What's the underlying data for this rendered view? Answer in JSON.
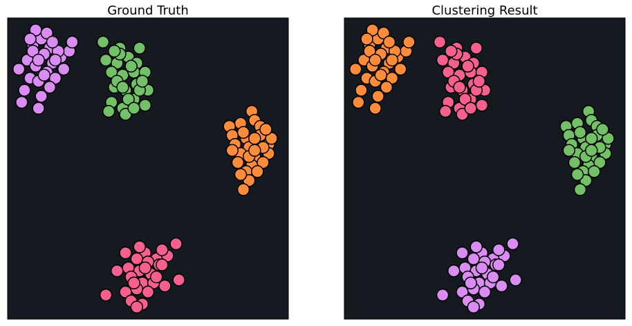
{
  "figure": {
    "background": "#ffffff",
    "panel_background": "#151a20",
    "marker_edge_color": "#000000"
  },
  "chart_data": [
    {
      "type": "scatter",
      "title": "Ground Truth",
      "grid": false,
      "axes_visible": false,
      "xlim": [
        0,
        10
      ],
      "ylim": [
        0,
        10
      ],
      "series": [
        {
          "color": "#d98cf2",
          "points": [
            [
              0.9,
              9.1
            ],
            [
              1.2,
              9.3
            ],
            [
              1.5,
              9.0
            ],
            [
              0.7,
              8.6
            ],
            [
              1.0,
              8.4
            ],
            [
              1.3,
              8.8
            ],
            [
              1.6,
              8.5
            ],
            [
              1.9,
              8.7
            ],
            [
              0.4,
              8.3
            ],
            [
              0.8,
              8.0
            ],
            [
              1.1,
              7.9
            ],
            [
              1.4,
              8.2
            ],
            [
              1.7,
              8.0
            ],
            [
              2.0,
              8.3
            ],
            [
              2.2,
              8.9
            ],
            [
              0.6,
              7.6
            ],
            [
              1.2,
              7.4
            ],
            [
              1.5,
              7.7
            ],
            [
              0.5,
              7.2
            ],
            [
              1.1,
              7.0
            ],
            [
              1.8,
              8.9
            ],
            [
              1.0,
              9.6
            ],
            [
              1.4,
              9.5
            ],
            [
              0.8,
              9.3
            ],
            [
              1.3,
              8.1
            ],
            [
              1.6,
              9.2
            ],
            [
              0.9,
              8.9
            ],
            [
              1.1,
              8.6
            ],
            [
              1.7,
              8.6
            ],
            [
              2.3,
              9.2
            ]
          ]
        },
        {
          "color": "#74c069",
          "points": [
            [
              3.4,
              9.2
            ],
            [
              4.0,
              9.0
            ],
            [
              4.7,
              9.0
            ],
            [
              3.5,
              8.6
            ],
            [
              3.9,
              8.5
            ],
            [
              4.3,
              8.7
            ],
            [
              4.6,
              8.5
            ],
            [
              3.7,
              8.2
            ],
            [
              4.1,
              8.1
            ],
            [
              4.5,
              8.2
            ],
            [
              4.9,
              8.2
            ],
            [
              3.8,
              7.7
            ],
            [
              4.2,
              7.6
            ],
            [
              4.6,
              7.8
            ],
            [
              5.0,
              7.6
            ],
            [
              3.7,
              7.2
            ],
            [
              4.1,
              7.0
            ],
            [
              4.5,
              7.3
            ],
            [
              4.9,
              7.1
            ],
            [
              3.6,
              6.9
            ],
            [
              4.2,
              6.8
            ],
            [
              4.7,
              7.6
            ],
            [
              4.0,
              8.8
            ],
            [
              4.4,
              8.4
            ],
            [
              3.9,
              7.9
            ],
            [
              4.8,
              7.9
            ],
            [
              4.3,
              7.3
            ],
            [
              3.8,
              8.9
            ],
            [
              4.5,
              7.0
            ],
            [
              4.1,
              7.7
            ]
          ]
        },
        {
          "color": "#ff8c3a",
          "points": [
            [
              8.7,
              6.9
            ],
            [
              7.9,
              6.4
            ],
            [
              8.3,
              6.5
            ],
            [
              8.8,
              6.6
            ],
            [
              9.0,
              6.4
            ],
            [
              8.0,
              6.1
            ],
            [
              8.5,
              6.0
            ],
            [
              9.0,
              6.1
            ],
            [
              8.1,
              5.8
            ],
            [
              8.6,
              5.7
            ],
            [
              9.3,
              5.8
            ],
            [
              8.3,
              5.5
            ],
            [
              8.8,
              5.4
            ],
            [
              9.3,
              5.5
            ],
            [
              8.2,
              5.2
            ],
            [
              8.7,
              5.1
            ],
            [
              9.1,
              5.2
            ],
            [
              8.5,
              4.9
            ],
            [
              8.9,
              4.9
            ],
            [
              8.6,
              4.6
            ],
            [
              8.4,
              4.3
            ],
            [
              9.4,
              6.0
            ],
            [
              8.4,
              6.2
            ],
            [
              8.8,
              6.0
            ],
            [
              8.6,
              5.4
            ],
            [
              9.1,
              5.7
            ],
            [
              8.0,
              5.6
            ],
            [
              8.8,
              5.6
            ],
            [
              8.3,
              4.8
            ],
            [
              9.2,
              6.3
            ]
          ]
        },
        {
          "color": "#f5608e",
          "points": [
            [
              6.0,
              2.5
            ],
            [
              4.9,
              2.2
            ],
            [
              5.3,
              2.0
            ],
            [
              5.7,
              2.1
            ],
            [
              4.2,
              2.2
            ],
            [
              4.6,
              2.0
            ],
            [
              5.0,
              1.9
            ],
            [
              5.4,
              1.8
            ],
            [
              3.9,
              1.6
            ],
            [
              4.3,
              1.7
            ],
            [
              4.7,
              1.6
            ],
            [
              5.1,
              1.5
            ],
            [
              5.5,
              1.8
            ],
            [
              4.4,
              1.4
            ],
            [
              4.8,
              1.2
            ],
            [
              5.2,
              1.2
            ],
            [
              5.6,
              1.1
            ],
            [
              6.1,
              1.3
            ],
            [
              3.5,
              0.8
            ],
            [
              4.2,
              0.9
            ],
            [
              4.6,
              1.0
            ],
            [
              5.0,
              0.9
            ],
            [
              4.4,
              0.6
            ],
            [
              4.8,
              0.5
            ],
            [
              4.6,
              0.4
            ],
            [
              5.5,
              2.3
            ],
            [
              4.7,
              2.4
            ],
            [
              4.9,
              1.7
            ],
            [
              5.3,
              1.4
            ],
            [
              4.5,
              1.2
            ]
          ]
        }
      ]
    },
    {
      "type": "scatter",
      "title": "Clustering Result",
      "grid": false,
      "axes_visible": false,
      "xlim": [
        0,
        10
      ],
      "ylim": [
        0,
        10
      ],
      "series": [
        {
          "color": "#ff8c3a",
          "points": [
            [
              0.9,
              9.1
            ],
            [
              1.2,
              9.3
            ],
            [
              1.5,
              9.0
            ],
            [
              0.7,
              8.6
            ],
            [
              1.0,
              8.4
            ],
            [
              1.3,
              8.8
            ],
            [
              1.6,
              8.5
            ],
            [
              1.9,
              8.7
            ],
            [
              0.4,
              8.3
            ],
            [
              0.8,
              8.0
            ],
            [
              1.1,
              7.9
            ],
            [
              1.4,
              8.2
            ],
            [
              1.7,
              8.0
            ],
            [
              2.0,
              8.3
            ],
            [
              2.2,
              8.9
            ],
            [
              0.6,
              7.6
            ],
            [
              1.2,
              7.4
            ],
            [
              1.5,
              7.7
            ],
            [
              0.5,
              7.2
            ],
            [
              1.1,
              7.0
            ],
            [
              1.8,
              8.9
            ],
            [
              1.0,
              9.6
            ],
            [
              1.4,
              9.5
            ],
            [
              0.8,
              9.3
            ],
            [
              1.3,
              8.1
            ],
            [
              1.6,
              9.2
            ],
            [
              0.9,
              8.9
            ],
            [
              1.1,
              8.6
            ],
            [
              1.7,
              8.6
            ],
            [
              2.3,
              9.2
            ]
          ]
        },
        {
          "color": "#f5608e",
          "points": [
            [
              3.4,
              9.2
            ],
            [
              4.0,
              9.0
            ],
            [
              4.7,
              9.0
            ],
            [
              3.5,
              8.6
            ],
            [
              3.9,
              8.5
            ],
            [
              4.3,
              8.7
            ],
            [
              4.6,
              8.5
            ],
            [
              3.7,
              8.2
            ],
            [
              4.1,
              8.1
            ],
            [
              4.5,
              8.2
            ],
            [
              4.9,
              8.2
            ],
            [
              3.8,
              7.7
            ],
            [
              4.2,
              7.6
            ],
            [
              4.6,
              7.8
            ],
            [
              5.0,
              7.6
            ],
            [
              3.7,
              7.2
            ],
            [
              4.1,
              7.0
            ],
            [
              4.5,
              7.3
            ],
            [
              4.9,
              7.1
            ],
            [
              3.6,
              6.9
            ],
            [
              4.2,
              6.8
            ],
            [
              4.7,
              7.6
            ],
            [
              4.0,
              8.8
            ],
            [
              4.4,
              8.4
            ],
            [
              3.9,
              7.9
            ],
            [
              4.8,
              7.9
            ],
            [
              4.3,
              7.3
            ],
            [
              3.8,
              8.9
            ],
            [
              4.5,
              7.0
            ],
            [
              4.1,
              7.7
            ]
          ]
        },
        {
          "color": "#74c069",
          "points": [
            [
              8.7,
              6.9
            ],
            [
              7.9,
              6.4
            ],
            [
              8.3,
              6.5
            ],
            [
              8.8,
              6.6
            ],
            [
              9.0,
              6.4
            ],
            [
              8.0,
              6.1
            ],
            [
              8.5,
              6.0
            ],
            [
              9.0,
              6.1
            ],
            [
              8.1,
              5.8
            ],
            [
              8.6,
              5.7
            ],
            [
              9.3,
              5.8
            ],
            [
              8.3,
              5.5
            ],
            [
              8.8,
              5.4
            ],
            [
              9.3,
              5.5
            ],
            [
              8.2,
              5.2
            ],
            [
              8.7,
              5.1
            ],
            [
              9.1,
              5.2
            ],
            [
              8.5,
              4.9
            ],
            [
              8.9,
              4.9
            ],
            [
              8.6,
              4.6
            ],
            [
              8.4,
              4.3
            ],
            [
              9.4,
              6.0
            ],
            [
              8.4,
              6.2
            ],
            [
              8.8,
              6.0
            ],
            [
              8.6,
              5.4
            ],
            [
              9.1,
              5.7
            ],
            [
              8.0,
              5.6
            ],
            [
              8.8,
              5.6
            ],
            [
              8.3,
              4.8
            ],
            [
              9.2,
              6.3
            ]
          ]
        },
        {
          "color": "#d98cf2",
          "points": [
            [
              6.0,
              2.5
            ],
            [
              4.9,
              2.2
            ],
            [
              5.3,
              2.0
            ],
            [
              5.7,
              2.1
            ],
            [
              4.2,
              2.2
            ],
            [
              4.6,
              2.0
            ],
            [
              5.0,
              1.9
            ],
            [
              5.4,
              1.8
            ],
            [
              3.9,
              1.6
            ],
            [
              4.3,
              1.7
            ],
            [
              4.7,
              1.6
            ],
            [
              5.1,
              1.5
            ],
            [
              5.5,
              1.8
            ],
            [
              4.4,
              1.4
            ],
            [
              4.8,
              1.2
            ],
            [
              5.2,
              1.2
            ],
            [
              5.6,
              1.1
            ],
            [
              6.1,
              1.3
            ],
            [
              3.5,
              0.8
            ],
            [
              4.2,
              0.9
            ],
            [
              4.6,
              1.0
            ],
            [
              5.0,
              0.9
            ],
            [
              4.4,
              0.6
            ],
            [
              4.8,
              0.5
            ],
            [
              4.6,
              0.4
            ],
            [
              5.5,
              2.3
            ],
            [
              4.7,
              2.4
            ],
            [
              4.9,
              1.7
            ],
            [
              5.3,
              1.4
            ],
            [
              4.5,
              1.2
            ]
          ]
        }
      ]
    }
  ]
}
